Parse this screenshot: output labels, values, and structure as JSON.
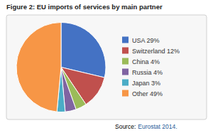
{
  "chart_data": {
    "type": "pie",
    "title": "Figure 2: EU imports of services by main partner",
    "categories": [
      "USA 29%",
      "Switzerland 12%",
      "China 4%",
      "Russia 4%",
      "Japan 3%",
      "Other 49%"
    ],
    "values": [
      29,
      12,
      4,
      4,
      3,
      49
    ],
    "colors": [
      "#4472c4",
      "#c0504d",
      "#9bbb59",
      "#8064a2",
      "#4bacc6",
      "#f79646"
    ],
    "legend": "right",
    "annotations": [
      "Source:",
      "Eurostat 2014."
    ]
  }
}
